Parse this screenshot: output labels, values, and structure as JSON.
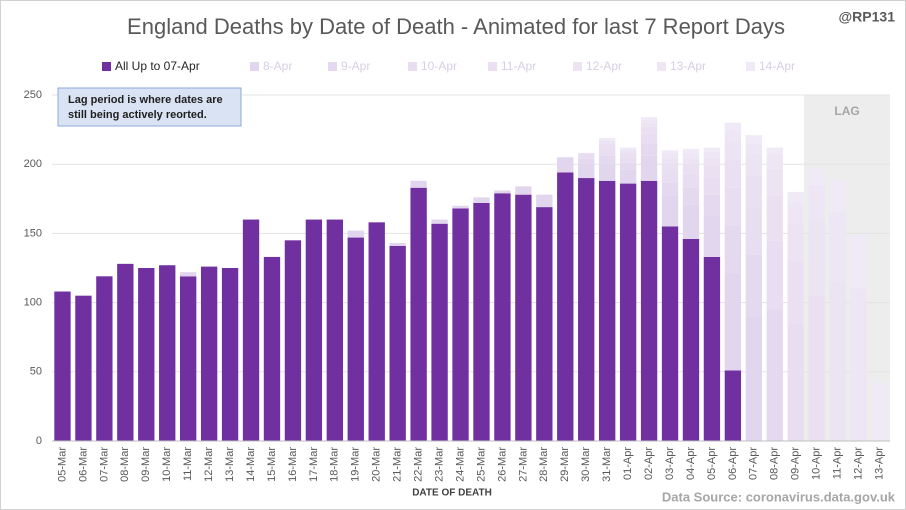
{
  "chart_data": {
    "type": "stacked_bar",
    "title": "England Deaths by Date of Death - Animated for last 7 Report Days",
    "handle": "@RP131",
    "annotation": [
      "Lag period is where dates are",
      "still being actively reorted."
    ],
    "lag_label": "LAG",
    "lag_start": "10-Apr",
    "xlabel": "DATE OF DEATH",
    "source": "Data Source: coronavirus.data.gov.uk",
    "categories": [
      "05-Mar",
      "06-Mar",
      "07-Mar",
      "08-Mar",
      "09-Mar",
      "10-Mar",
      "11-Mar",
      "12-Mar",
      "13-Mar",
      "14-Mar",
      "15-Mar",
      "16-Mar",
      "17-Mar",
      "18-Mar",
      "19-Mar",
      "20-Mar",
      "21-Mar",
      "22-Mar",
      "23-Mar",
      "24-Mar",
      "25-Mar",
      "26-Mar",
      "27-Mar",
      "28-Mar",
      "29-Mar",
      "30-Mar",
      "31-Mar",
      "01-Apr",
      "02-Apr",
      "03-Apr",
      "04-Apr",
      "05-Apr",
      "06-Apr",
      "07-Apr",
      "08-Apr",
      "09-Apr",
      "10-Apr",
      "11-Apr",
      "12-Apr",
      "13-Apr"
    ],
    "series": [
      {
        "name": "All Up to 07-Apr",
        "color": "#7030a0",
        "values": [
          108,
          105,
          119,
          128,
          125,
          127,
          119,
          126,
          125,
          160,
          133,
          145,
          160,
          160,
          147,
          158,
          141,
          183,
          157,
          168,
          172,
          179,
          178,
          169,
          194,
          190,
          188,
          186,
          188,
          155,
          146,
          133,
          51,
          0,
          0,
          0,
          0,
          0,
          0,
          0
        ]
      },
      {
        "name": "8-Apr",
        "color": "#e2d5ee",
        "values": [
          0,
          0,
          0,
          0,
          0,
          0,
          3,
          0,
          0,
          0,
          0,
          0,
          0,
          0,
          5,
          0,
          2,
          5,
          3,
          2,
          4,
          2,
          6,
          9,
          11,
          10,
          12,
          10,
          18,
          22,
          25,
          30,
          70,
          90,
          0,
          0,
          0,
          0,
          0,
          0
        ]
      },
      {
        "name": "9-Apr",
        "color": "#e5d9ef",
        "values": [
          0,
          0,
          0,
          0,
          0,
          0,
          0,
          0,
          0,
          0,
          0,
          0,
          0,
          0,
          0,
          0,
          0,
          0,
          0,
          0,
          0,
          0,
          0,
          0,
          0,
          4,
          6,
          5,
          9,
          10,
          12,
          15,
          35,
          45,
          95,
          0,
          0,
          0,
          0,
          0
        ]
      },
      {
        "name": "10-Apr",
        "color": "#e8ddf1",
        "values": [
          0,
          0,
          0,
          0,
          0,
          0,
          0,
          0,
          0,
          0,
          0,
          0,
          0,
          0,
          0,
          0,
          0,
          0,
          0,
          0,
          0,
          0,
          0,
          0,
          0,
          4,
          5,
          4,
          7,
          8,
          10,
          12,
          27,
          33,
          50,
          85,
          0,
          0,
          0,
          0
        ]
      },
      {
        "name": "11-Apr",
        "color": "#eae0f2",
        "values": [
          0,
          0,
          0,
          0,
          0,
          0,
          0,
          0,
          0,
          0,
          0,
          0,
          0,
          0,
          0,
          0,
          0,
          0,
          0,
          0,
          0,
          0,
          0,
          0,
          0,
          0,
          4,
          3,
          5,
          6,
          7,
          9,
          20,
          24,
          32,
          45,
          105,
          0,
          0,
          0
        ]
      },
      {
        "name": "12-Apr",
        "color": "#ece3f3",
        "values": [
          0,
          0,
          0,
          0,
          0,
          0,
          0,
          0,
          0,
          0,
          0,
          0,
          0,
          0,
          0,
          0,
          0,
          0,
          0,
          0,
          0,
          0,
          0,
          0,
          0,
          0,
          2,
          2,
          3,
          4,
          5,
          6,
          13,
          15,
          20,
          28,
          55,
          115,
          0,
          0
        ]
      },
      {
        "name": "13-Apr",
        "color": "#eee6f4",
        "values": [
          0,
          0,
          0,
          0,
          0,
          0,
          0,
          0,
          0,
          0,
          0,
          0,
          0,
          0,
          0,
          0,
          0,
          0,
          0,
          0,
          0,
          0,
          0,
          0,
          0,
          0,
          1,
          1,
          2,
          3,
          3,
          4,
          8,
          8,
          10,
          14,
          25,
          50,
          110,
          0
        ]
      },
      {
        "name": "14-Apr",
        "color": "#f0e9f6",
        "values": [
          0,
          0,
          0,
          0,
          0,
          0,
          0,
          0,
          0,
          0,
          0,
          0,
          0,
          0,
          0,
          0,
          0,
          0,
          0,
          0,
          0,
          0,
          0,
          0,
          0,
          0,
          1,
          1,
          2,
          2,
          3,
          3,
          6,
          6,
          5,
          8,
          13,
          24,
          39,
          42
        ]
      }
    ],
    "ylim": [
      0,
      250
    ],
    "yticks": [
      0,
      50,
      100,
      150,
      200,
      250
    ],
    "grid": true
  }
}
